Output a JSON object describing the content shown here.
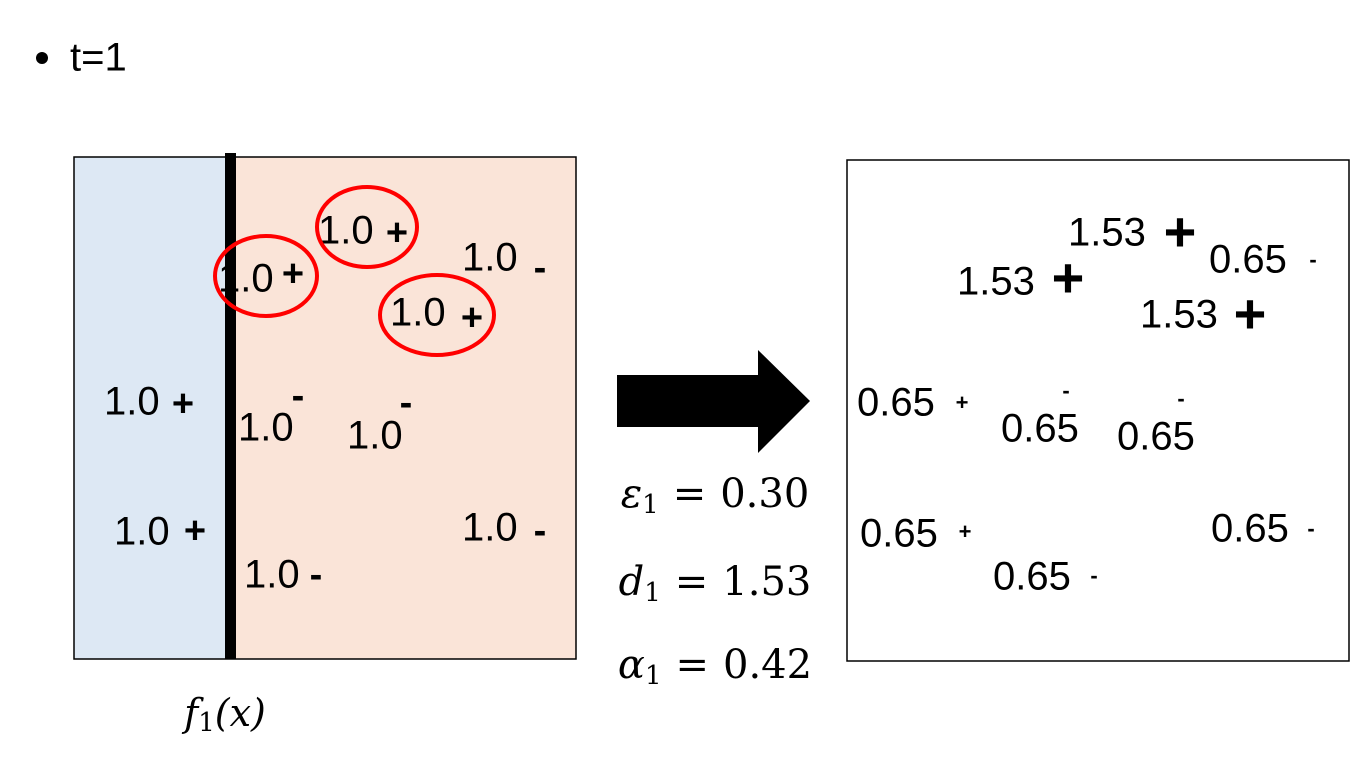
{
  "bullet": "t=1",
  "left_points": [
    {
      "weight": "1.0",
      "sign": "+",
      "circled": true
    },
    {
      "weight": "1.0",
      "sign": "+",
      "circled": true
    },
    {
      "weight": "1.0",
      "sign": "-",
      "circled": false
    },
    {
      "weight": "1.0",
      "sign": "+",
      "circled": true
    },
    {
      "weight": "1.0",
      "sign": "+",
      "circled": false
    },
    {
      "weight": "1.0",
      "sign": "-",
      "circled": false
    },
    {
      "weight": "1.0",
      "sign": "-",
      "circled": false
    },
    {
      "weight": "1.0",
      "sign": "+",
      "circled": false
    },
    {
      "weight": "1.0",
      "sign": "-",
      "circled": false
    },
    {
      "weight": "1.0",
      "sign": "-",
      "circled": false
    }
  ],
  "classifier_label": {
    "symbol": "f",
    "subscript": "1",
    "argument": "(x)"
  },
  "equations": [
    {
      "symbol": "ε",
      "subscript": "1",
      "operator": "=",
      "value": "0.30"
    },
    {
      "symbol": "d",
      "subscript": "1",
      "operator": "=",
      "value": "1.53"
    },
    {
      "symbol": "α",
      "subscript": "1",
      "operator": "=",
      "value": "0.42"
    }
  ],
  "right_points": [
    {
      "weight": "1.53",
      "sign": "+"
    },
    {
      "weight": "1.53",
      "sign": "+"
    },
    {
      "weight": "0.65",
      "sign": "-"
    },
    {
      "weight": "1.53",
      "sign": "+"
    },
    {
      "weight": "0.65",
      "sign": "+"
    },
    {
      "weight": "0.65",
      "sign": "-"
    },
    {
      "weight": "0.65",
      "sign": "-"
    },
    {
      "weight": "0.65",
      "sign": "+"
    },
    {
      "weight": "0.65",
      "sign": "-"
    },
    {
      "weight": "0.65",
      "sign": "-"
    }
  ]
}
